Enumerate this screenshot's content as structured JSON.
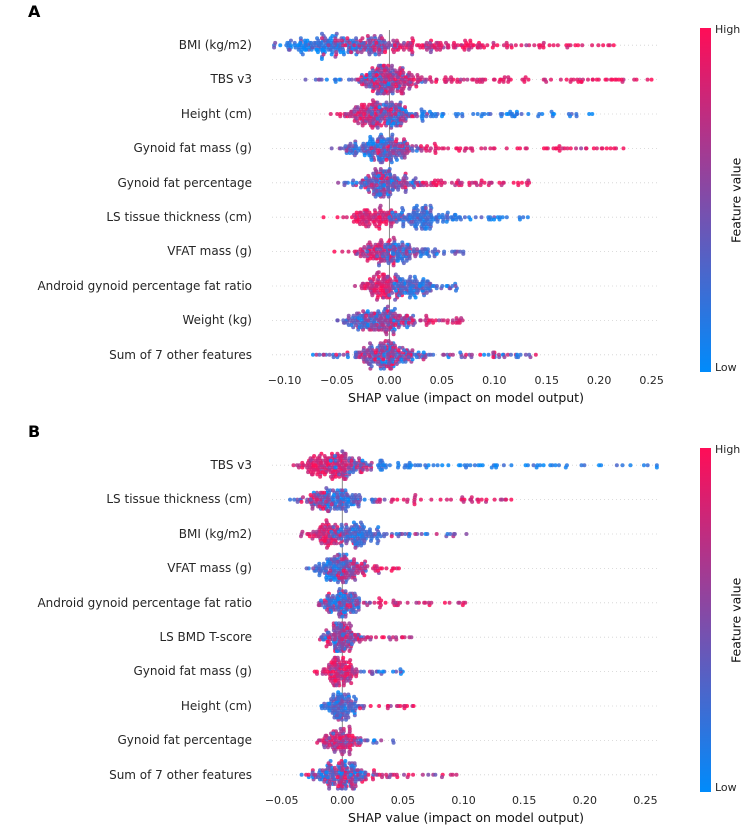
{
  "chart_data": [
    {
      "type": "scatter",
      "subtype": "shap-beeswarm",
      "panel_label": "A",
      "xlabel": "SHAP value (impact on model output)",
      "x_domain": [
        -0.112,
        0.258
      ],
      "zero_line_x": 0,
      "x_ticks": [
        {
          "value": -0.1,
          "label": "−0.10"
        },
        {
          "value": -0.05,
          "label": "−0.05"
        },
        {
          "value": 0.0,
          "label": "0.00"
        },
        {
          "value": 0.05,
          "label": "0.05"
        },
        {
          "value": 0.1,
          "label": "0.10"
        },
        {
          "value": 0.15,
          "label": "0.15"
        },
        {
          "value": 0.2,
          "label": "0.20"
        },
        {
          "value": 0.25,
          "label": "0.25"
        }
      ],
      "colorbar": {
        "title": "Feature value",
        "high_label": "High",
        "low_label": "Low",
        "high_color": "#ff0d57",
        "low_color": "#008bfb"
      },
      "zero_line_color": "#888888",
      "features": [
        {
          "label": "BMI (kg/m2)",
          "clusters": [
            {
              "n": 140,
              "mean": -0.065,
              "sd": 0.022,
              "t": 0.18,
              "ts": 0.15
            },
            {
              "n": 110,
              "mean": -0.015,
              "sd": 0.018,
              "t": 0.5,
              "ts": 0.25
            },
            {
              "n": 90,
              "mean": 0.03,
              "sd": 0.03,
              "t": 0.8,
              "ts": 0.15
            }
          ],
          "tails": [
            {
              "n": 55,
              "from": 0.07,
              "to": 0.215,
              "t": 0.88,
              "ts": 0.1,
              "pow": 1.3
            }
          ]
        },
        {
          "label": "TBS v3",
          "clusters": [
            {
              "n": 200,
              "mean": -0.005,
              "sd": 0.013,
              "t": 0.6,
              "ts": 0.28
            },
            {
              "n": 40,
              "mean": 0.02,
              "sd": 0.01,
              "t": 0.75,
              "ts": 0.2
            },
            {
              "n": 12,
              "mean": -0.055,
              "sd": 0.01,
              "t": 0.25,
              "ts": 0.15
            }
          ],
          "tails": [
            {
              "n": 80,
              "from": 0.035,
              "to": 0.25,
              "t": 0.88,
              "ts": 0.08,
              "pow": 1.2
            }
          ]
        },
        {
          "label": "Height (cm)",
          "clusters": [
            {
              "n": 130,
              "mean": -0.022,
              "sd": 0.014,
              "t": 0.8,
              "ts": 0.15
            },
            {
              "n": 110,
              "mean": 0.005,
              "sd": 0.013,
              "t": 0.45,
              "ts": 0.25
            }
          ],
          "tails": [
            {
              "n": 60,
              "from": 0.03,
              "to": 0.205,
              "t": 0.15,
              "ts": 0.1,
              "pow": 1.3
            }
          ]
        },
        {
          "label": "Gynoid fat mass (g)",
          "clusters": [
            {
              "n": 150,
              "mean": -0.015,
              "sd": 0.016,
              "t": 0.3,
              "ts": 0.18
            },
            {
              "n": 70,
              "mean": 0.008,
              "sd": 0.012,
              "t": 0.6,
              "ts": 0.25
            }
          ],
          "tails": [
            {
              "n": 60,
              "from": 0.035,
              "to": 0.225,
              "t": 0.9,
              "ts": 0.08,
              "pow": 1.2
            }
          ]
        },
        {
          "label": "Gynoid fat percentage",
          "clusters": [
            {
              "n": 190,
              "mean": -0.004,
              "sd": 0.014,
              "t": 0.45,
              "ts": 0.25
            }
          ],
          "tails": [
            {
              "n": 55,
              "from": 0.03,
              "to": 0.135,
              "t": 0.87,
              "ts": 0.1,
              "pow": 1.1
            }
          ]
        },
        {
          "label": "LS tissue thickness (cm)",
          "clusters": [
            {
              "n": 110,
              "mean": -0.014,
              "sd": 0.013,
              "t": 0.85,
              "ts": 0.12
            },
            {
              "n": 130,
              "mean": 0.03,
              "sd": 0.013,
              "t": 0.22,
              "ts": 0.12
            }
          ],
          "tails": [
            {
              "n": 28,
              "from": 0.055,
              "to": 0.135,
              "t": 0.15,
              "ts": 0.1,
              "pow": 1.2
            }
          ]
        },
        {
          "label": "VFAT mass (g)",
          "clusters": [
            {
              "n": 90,
              "mean": -0.012,
              "sd": 0.011,
              "t": 0.78,
              "ts": 0.15
            },
            {
              "n": 110,
              "mean": 0.01,
              "sd": 0.012,
              "t": 0.35,
              "ts": 0.2
            }
          ],
          "tails": [
            {
              "n": 18,
              "from": 0.033,
              "to": 0.073,
              "t": 0.3,
              "ts": 0.2,
              "pow": 1.2
            }
          ]
        },
        {
          "label": "Android gynoid percentage fat ratio",
          "clusters": [
            {
              "n": 115,
              "mean": -0.008,
              "sd": 0.011,
              "t": 0.8,
              "ts": 0.15
            },
            {
              "n": 105,
              "mean": 0.024,
              "sd": 0.012,
              "t": 0.28,
              "ts": 0.15
            }
          ],
          "tails": [
            {
              "n": 12,
              "from": 0.045,
              "to": 0.065,
              "t": 0.3,
              "ts": 0.2,
              "pow": 1
            }
          ]
        },
        {
          "label": "Weight (kg)",
          "clusters": [
            {
              "n": 85,
              "mean": -0.025,
              "sd": 0.011,
              "t": 0.3,
              "ts": 0.18
            },
            {
              "n": 125,
              "mean": 0.0,
              "sd": 0.011,
              "t": 0.55,
              "ts": 0.25
            }
          ],
          "tails": [
            {
              "n": 30,
              "from": 0.018,
              "to": 0.07,
              "t": 0.82,
              "ts": 0.12,
              "pow": 1.1
            }
          ]
        },
        {
          "label": "Sum of 7 other features",
          "clusters": [
            {
              "n": 210,
              "mean": -0.004,
              "sd": 0.016,
              "t": 0.5,
              "ts": 0.3
            }
          ],
          "tails": [
            {
              "n": 45,
              "from": 0.03,
              "to": 0.145,
              "t": 0.5,
              "ts": 0.3,
              "pow": 1.2
            },
            {
              "n": 14,
              "from": -0.035,
              "to": -0.075,
              "t": 0.5,
              "ts": 0.3,
              "pow": 1
            }
          ]
        }
      ]
    },
    {
      "type": "scatter",
      "subtype": "shap-beeswarm",
      "panel_label": "B",
      "xlabel": "SHAP value (impact on model output)",
      "x_domain": [
        -0.058,
        0.262
      ],
      "zero_line_x": 0,
      "x_ticks": [
        {
          "value": -0.05,
          "label": "−0.05"
        },
        {
          "value": 0.0,
          "label": "0.00"
        },
        {
          "value": 0.05,
          "label": "0.05"
        },
        {
          "value": 0.1,
          "label": "0.10"
        },
        {
          "value": 0.15,
          "label": "0.15"
        },
        {
          "value": 0.2,
          "label": "0.20"
        },
        {
          "value": 0.25,
          "label": "0.25"
        }
      ],
      "colorbar": {
        "title": "Feature value",
        "high_label": "High",
        "low_label": "Low",
        "high_color": "#ff0d57",
        "low_color": "#008bfb"
      },
      "zero_line_color": "#888888",
      "features": [
        {
          "label": "TBS v3",
          "clusters": [
            {
              "n": 150,
              "mean": -0.012,
              "sd": 0.011,
              "t": 0.85,
              "ts": 0.12
            },
            {
              "n": 70,
              "mean": 0.008,
              "sd": 0.01,
              "t": 0.5,
              "ts": 0.25
            }
          ],
          "tails": [
            {
              "n": 75,
              "from": 0.03,
              "to": 0.26,
              "t": 0.12,
              "ts": 0.08,
              "pow": 1.5
            }
          ]
        },
        {
          "label": "LS tissue thickness (cm)",
          "clusters": [
            {
              "n": 130,
              "mean": -0.003,
              "sd": 0.012,
              "t": 0.3,
              "ts": 0.18
            },
            {
              "n": 45,
              "mean": -0.022,
              "sd": 0.008,
              "t": 0.6,
              "ts": 0.25
            }
          ],
          "tails": [
            {
              "n": 42,
              "from": 0.028,
              "to": 0.14,
              "t": 0.85,
              "ts": 0.1,
              "pow": 1.3
            }
          ]
        },
        {
          "label": "BMI (kg/m2)",
          "clusters": [
            {
              "n": 95,
              "mean": -0.012,
              "sd": 0.009,
              "t": 0.82,
              "ts": 0.13
            },
            {
              "n": 115,
              "mean": 0.012,
              "sd": 0.01,
              "t": 0.3,
              "ts": 0.15
            }
          ],
          "tails": [
            {
              "n": 26,
              "from": 0.03,
              "to": 0.105,
              "t": 0.45,
              "ts": 0.25,
              "pow": 1.2
            }
          ]
        },
        {
          "label": "VFAT mass (g)",
          "clusters": [
            {
              "n": 130,
              "mean": -0.006,
              "sd": 0.009,
              "t": 0.28,
              "ts": 0.16
            },
            {
              "n": 55,
              "mean": 0.007,
              "sd": 0.008,
              "t": 0.7,
              "ts": 0.2
            }
          ],
          "tails": [
            {
              "n": 16,
              "from": 0.02,
              "to": 0.047,
              "t": 0.85,
              "ts": 0.1,
              "pow": 1
            }
          ]
        },
        {
          "label": "Android gynoid percentage fat ratio",
          "clusters": [
            {
              "n": 145,
              "mean": -0.001,
              "sd": 0.01,
              "t": 0.4,
              "ts": 0.25
            }
          ],
          "tails": [
            {
              "n": 32,
              "from": 0.02,
              "to": 0.103,
              "t": 0.85,
              "ts": 0.1,
              "pow": 1.3
            }
          ]
        },
        {
          "label": "LS BMD T-score",
          "clusters": [
            {
              "n": 150,
              "mean": -0.001,
              "sd": 0.008,
              "t": 0.5,
              "ts": 0.28
            }
          ],
          "tails": [
            {
              "n": 20,
              "from": 0.014,
              "to": 0.057,
              "t": 0.8,
              "ts": 0.15,
              "pow": 1.1
            }
          ]
        },
        {
          "label": "Gynoid fat mass (g)",
          "clusters": [
            {
              "n": 125,
              "mean": -0.003,
              "sd": 0.008,
              "t": 0.78,
              "ts": 0.15
            }
          ],
          "tails": [
            {
              "n": 18,
              "from": 0.012,
              "to": 0.05,
              "t": 0.3,
              "ts": 0.2,
              "pow": 1.1
            }
          ]
        },
        {
          "label": "Height (cm)",
          "clusters": [
            {
              "n": 125,
              "mean": -0.001,
              "sd": 0.008,
              "t": 0.32,
              "ts": 0.18
            }
          ],
          "tails": [
            {
              "n": 16,
              "from": 0.014,
              "to": 0.06,
              "t": 0.85,
              "ts": 0.12,
              "pow": 1.1
            }
          ]
        },
        {
          "label": "Gynoid fat percentage",
          "clusters": [
            {
              "n": 115,
              "mean": -0.001,
              "sd": 0.007,
              "t": 0.72,
              "ts": 0.18
            }
          ],
          "tails": [
            {
              "n": 14,
              "from": 0.012,
              "to": 0.043,
              "t": 0.4,
              "ts": 0.25,
              "pow": 1
            }
          ]
        },
        {
          "label": "Sum of 7 other features",
          "clusters": [
            {
              "n": 200,
              "mean": -0.002,
              "sd": 0.012,
              "t": 0.5,
              "ts": 0.3
            }
          ],
          "tails": [
            {
              "n": 28,
              "from": 0.024,
              "to": 0.095,
              "t": 0.75,
              "ts": 0.2,
              "pow": 1.2
            }
          ]
        }
      ]
    }
  ]
}
